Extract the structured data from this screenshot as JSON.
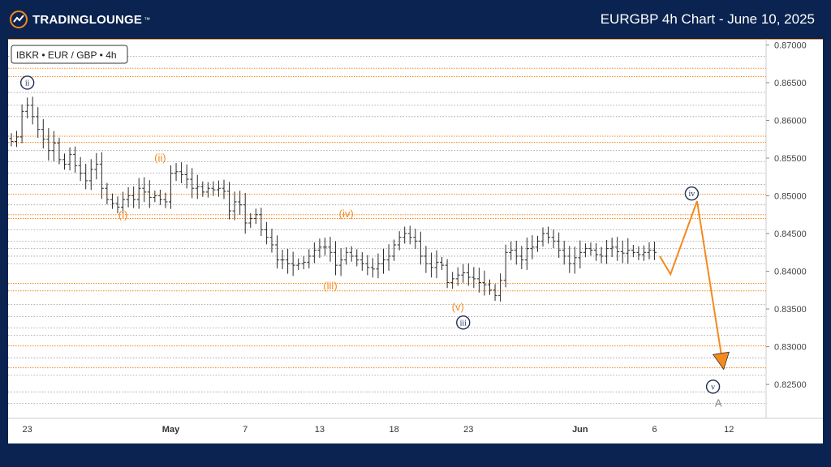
{
  "header": {
    "brand_main": "TRADING",
    "brand_second": "LOUNGE",
    "brand_tm": "™",
    "title": "EURGBP 4h Chart - June 10, 2025"
  },
  "chart_data": {
    "type": "candlestick",
    "instrument_label": "IBKR • EUR / GBP • 4h",
    "y_axis": {
      "range": [
        0.8205,
        0.8708
      ],
      "tick_labels": [
        "0.87000",
        "0.86500",
        "0.86000",
        "0.85500",
        "0.85000",
        "0.84500",
        "0.84000",
        "0.83500",
        "0.83000",
        "0.82500"
      ],
      "tick_values": [
        0.87,
        0.865,
        0.86,
        0.855,
        0.85,
        0.845,
        0.84,
        0.835,
        0.83,
        0.825
      ]
    },
    "x_axis": {
      "labels": [
        {
          "text": "23",
          "bold": false,
          "idx": 3
        },
        {
          "text": "May",
          "bold": true,
          "idx": 30
        },
        {
          "text": "7",
          "bold": false,
          "idx": 44
        },
        {
          "text": "13",
          "bold": false,
          "idx": 58
        },
        {
          "text": "18",
          "bold": false,
          "idx": 72
        },
        {
          "text": "23",
          "bold": false,
          "idx": 86
        },
        {
          "text": "Jun",
          "bold": true,
          "idx": 107
        },
        {
          "text": "6",
          "bold": false,
          "idx": 121
        },
        {
          "text": "12",
          "bold": false,
          "idx": 135
        }
      ]
    },
    "orange_levels": [
      0.8669,
      0.8658,
      0.8579,
      0.8571,
      0.8502,
      0.8475,
      0.847,
      0.8384,
      0.8374,
      0.8301,
      0.8272
    ],
    "gray_levels": [
      0.8685,
      0.8637,
      0.862,
      0.8605,
      0.856,
      0.8545,
      0.853,
      0.8515,
      0.8488,
      0.8455,
      0.844,
      0.843,
      0.842,
      0.841,
      0.8356,
      0.834,
      0.8325,
      0.8315,
      0.8285,
      0.8262,
      0.824,
      0.8225
    ],
    "price_path": [
      0.8572,
      0.8578,
      0.8612,
      0.862,
      0.8605,
      0.8588,
      0.8575,
      0.856,
      0.857,
      0.8548,
      0.8542,
      0.8555,
      0.854,
      0.853,
      0.852,
      0.8535,
      0.8542,
      0.851,
      0.8495,
      0.849,
      0.8485,
      0.8495,
      0.85,
      0.8495,
      0.851,
      0.8505,
      0.8498,
      0.85,
      0.8495,
      0.8492,
      0.853,
      0.8532,
      0.8528,
      0.8522,
      0.851,
      0.8512,
      0.8505,
      0.851,
      0.8508,
      0.851,
      0.8506,
      0.848,
      0.8492,
      0.8488,
      0.8464,
      0.847,
      0.8475,
      0.8455,
      0.8445,
      0.8435,
      0.8415,
      0.8415,
      0.841,
      0.8408,
      0.841,
      0.8412,
      0.842,
      0.8428,
      0.8432,
      0.8432,
      0.8425,
      0.8408,
      0.8415,
      0.8425,
      0.842,
      0.8415,
      0.841,
      0.8405,
      0.8403,
      0.841,
      0.8415,
      0.842,
      0.8435,
      0.8445,
      0.845,
      0.8445,
      0.844,
      0.842,
      0.841,
      0.8405,
      0.8412,
      0.8408,
      0.8385,
      0.839,
      0.8395,
      0.8398,
      0.8392,
      0.839,
      0.8385,
      0.8382,
      0.8375,
      0.8368,
      0.8388,
      0.8425,
      0.8428,
      0.842,
      0.8415,
      0.843,
      0.8432,
      0.844,
      0.845,
      0.8445,
      0.844,
      0.8428,
      0.842,
      0.841,
      0.8418,
      0.8425,
      0.843,
      0.8428,
      0.8422,
      0.842,
      0.843,
      0.8432,
      0.8426,
      0.8424,
      0.8428,
      0.8425,
      0.8422,
      0.8425,
      0.8428,
      0.8425
    ],
    "projection": [
      {
        "idx": 122,
        "value": 0.842
      },
      {
        "idx": 124,
        "value": 0.8396
      },
      {
        "idx": 129,
        "value": 0.8493
      },
      {
        "idx": 134,
        "value": 0.827
      }
    ],
    "wave_labels": [
      {
        "text": "ii",
        "kind": "circle",
        "idx": 3,
        "value": 0.865
      },
      {
        "text": "(ii)",
        "kind": "orange",
        "idx": 28,
        "value": 0.855
      },
      {
        "text": "(i)",
        "kind": "orange",
        "idx": 21,
        "value": 0.8474
      },
      {
        "text": "(iv)",
        "kind": "orange",
        "idx": 63,
        "value": 0.8476
      },
      {
        "text": "(iii)",
        "kind": "orange",
        "idx": 60,
        "value": 0.838
      },
      {
        "text": "(v)",
        "kind": "orange",
        "idx": 84,
        "value": 0.8352
      },
      {
        "text": "iii",
        "kind": "circle",
        "idx": 85,
        "value": 0.8332
      },
      {
        "text": "iv",
        "kind": "circle",
        "idx": 128,
        "value": 0.8503
      },
      {
        "text": "v",
        "kind": "circle",
        "idx": 132,
        "value": 0.8247
      },
      {
        "text": "A",
        "kind": "gray",
        "idx": 133,
        "value": 0.8225
      }
    ],
    "colors": {
      "orange": "#f4891f",
      "navy": "#1f2f55",
      "candle": "#2a2a2a",
      "grid_gray": "#9a9a9a",
      "label_gray": "#8a8a8a"
    }
  }
}
